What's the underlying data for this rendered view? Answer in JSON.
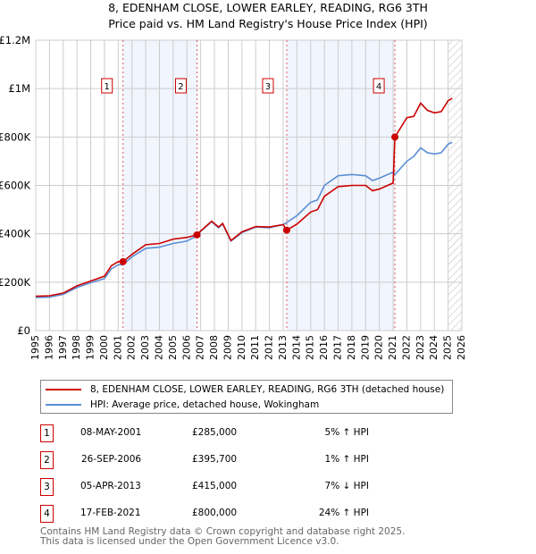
{
  "title_line1": "8, EDENHAM CLOSE, LOWER EARLEY, READING, RG6 3TH",
  "title_line2": "Price paid vs. HM Land Registry's House Price Index (HPI)",
  "chart_data": {
    "type": "line",
    "title": "Price paid vs. HM Land Registry's House Price Index (HPI)",
    "xlim": [
      1995,
      2026
    ],
    "ylim": [
      0,
      1200000
    ],
    "x_ticks": [
      "1995",
      "1996",
      "1997",
      "1998",
      "1999",
      "2000",
      "2001",
      "2002",
      "2003",
      "2004",
      "2005",
      "2006",
      "2007",
      "2008",
      "2009",
      "2010",
      "2011",
      "2012",
      "2013",
      "2014",
      "2015",
      "2016",
      "2017",
      "2018",
      "2019",
      "2020",
      "2021",
      "2022",
      "2023",
      "2024",
      "2025",
      "2026"
    ],
    "y_ticks": [
      {
        "v": 0,
        "label": "£0"
      },
      {
        "v": 200000,
        "label": "£200K"
      },
      {
        "v": 400000,
        "label": "£400K"
      },
      {
        "v": 600000,
        "label": "£600K"
      },
      {
        "v": 800000,
        "label": "£800K"
      },
      {
        "v": 1000000,
        "label": "£1M"
      },
      {
        "v": 1200000,
        "label": "£1.2M"
      }
    ],
    "grid": true,
    "shaded_periods": [
      [
        2001.35,
        2006.73
      ],
      [
        2013.26,
        2021.13
      ]
    ],
    "forecast_hatch_from": 2025.0,
    "series": [
      {
        "name": "8, EDENHAM CLOSE, LOWER EARLEY, READING, RG6 3TH (detached house)",
        "color": "#cc0000",
        "x": [
          1995,
          1996,
          1997,
          1998,
          1999,
          2000,
          2000.5,
          2001,
          2001.35,
          2002,
          2003,
          2004,
          2005,
          2006,
          2006.73,
          2007,
          2007.8,
          2008.3,
          2008.6,
          2009.2,
          2010,
          2011,
          2012,
          2013,
          2013.26,
          2014,
          2015,
          2015.5,
          2016,
          2017,
          2018,
          2019,
          2019.5,
          2020,
          2021,
          2021.13,
          2022,
          2022.5,
          2023,
          2023.5,
          2024,
          2024.5,
          2025,
          2025.3
        ],
        "y": [
          142000,
          144000,
          155000,
          185000,
          205000,
          225000,
          268000,
          285000,
          285000,
          315000,
          355000,
          360000,
          378000,
          385000,
          395700,
          412000,
          452000,
          428000,
          443000,
          372000,
          408000,
          430000,
          428000,
          438000,
          415000,
          440000,
          490000,
          500000,
          555000,
          595000,
          600000,
          600000,
          578000,
          585000,
          610000,
          800000,
          880000,
          885000,
          940000,
          910000,
          900000,
          905000,
          950000,
          960000
        ]
      },
      {
        "name": "HPI: Average price, detached house, Wokingham",
        "color": "#5b8fd4",
        "x": [
          1995,
          1996,
          1997,
          1998,
          1999,
          2000,
          2000.5,
          2001,
          2001.35,
          2002,
          2003,
          2004,
          2005,
          2006,
          2006.73,
          2007,
          2007.8,
          2008.3,
          2008.6,
          2009.2,
          2010,
          2011,
          2012,
          2013,
          2013.26,
          2014,
          2015,
          2015.5,
          2016,
          2017,
          2018,
          2019,
          2019.5,
          2020,
          2021,
          2021.13,
          2022,
          2022.5,
          2023,
          2023.5,
          2024,
          2024.5,
          2025,
          2025.3
        ],
        "y": [
          137000,
          138000,
          150000,
          178000,
          198000,
          215000,
          255000,
          272000,
          272000,
          305000,
          340000,
          345000,
          360000,
          370000,
          392000,
          410000,
          450000,
          425000,
          440000,
          370000,
          405000,
          428000,
          425000,
          438000,
          447000,
          475000,
          530000,
          540000,
          600000,
          640000,
          645000,
          640000,
          620000,
          630000,
          655000,
          645000,
          700000,
          720000,
          755000,
          735000,
          730000,
          735000,
          770000,
          778000
        ]
      }
    ],
    "annotations": [
      {
        "label": "1",
        "x": 2001.35,
        "y": 285000
      },
      {
        "label": "2",
        "x": 2006.73,
        "y": 395700
      },
      {
        "label": "3",
        "x": 2013.26,
        "y": 415000
      },
      {
        "label": "4",
        "x": 2021.13,
        "y": 800000
      }
    ]
  },
  "legend": {
    "property_label": "8, EDENHAM CLOSE, LOWER EARLEY, READING, RG6 3TH (detached house)",
    "hpi_label": "HPI: Average price, detached house, Wokingham"
  },
  "sales": [
    {
      "num": "1",
      "date": "08-MAY-2001",
      "price": "£285,000",
      "hpi": "5% ↑ HPI"
    },
    {
      "num": "2",
      "date": "26-SEP-2006",
      "price": "£395,700",
      "hpi": "1% ↑ HPI"
    },
    {
      "num": "3",
      "date": "05-APR-2013",
      "price": "£415,000",
      "hpi": "7% ↓ HPI"
    },
    {
      "num": "4",
      "date": "17-FEB-2021",
      "price": "£800,000",
      "hpi": "24% ↑ HPI"
    }
  ],
  "footer_line1": "Contains HM Land Registry data © Crown copyright and database right 2025.",
  "footer_line2": "This data is licensed under the Open Government Licence v3.0."
}
